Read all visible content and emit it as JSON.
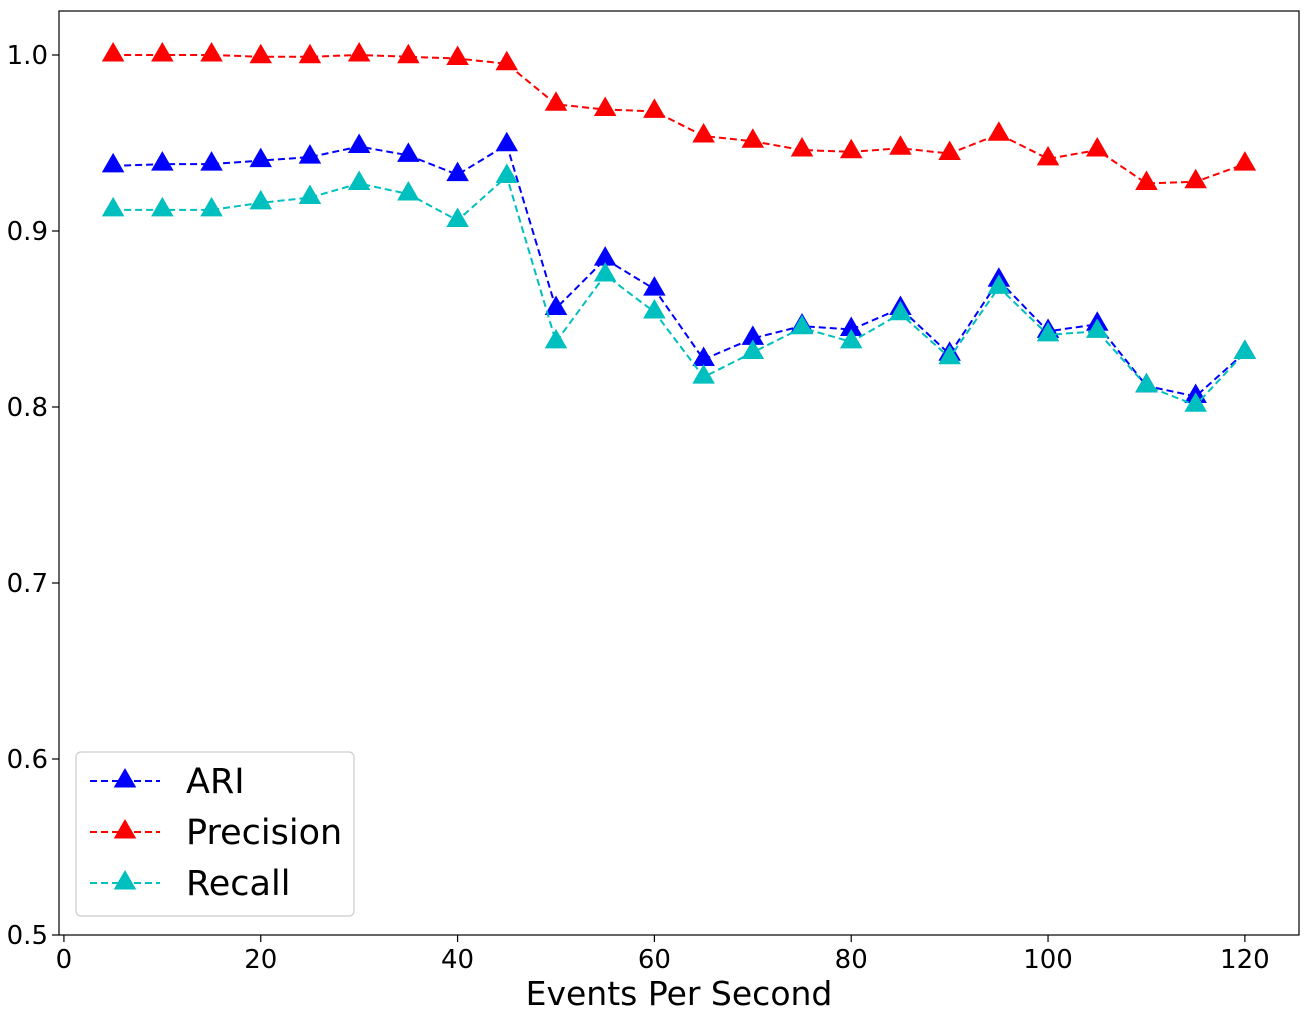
{
  "chart_data": {
    "type": "line",
    "title": "",
    "xlabel": "Events Per Second",
    "ylabel": "",
    "xlim": [
      -0.5,
      125.5
    ],
    "ylim": [
      0.5,
      1.025
    ],
    "xticks": [
      0,
      20,
      40,
      60,
      80,
      100,
      120
    ],
    "yticks": [
      0.5,
      0.6,
      0.7,
      0.8,
      0.9,
      1.0
    ],
    "xtick_labels": [
      "0",
      "20",
      "40",
      "60",
      "80",
      "100",
      "120"
    ],
    "ytick_labels": [
      "0.5",
      "0.6",
      "0.7",
      "0.8",
      "0.9",
      "1.0"
    ],
    "grid": false,
    "legend_position": "lower-left",
    "x": [
      5,
      10,
      15,
      20,
      25,
      30,
      35,
      40,
      45,
      50,
      55,
      60,
      65,
      70,
      75,
      80,
      85,
      90,
      95,
      100,
      105,
      110,
      115,
      120
    ],
    "series": [
      {
        "name": "ARI",
        "color": "#0000ff",
        "marker": "triangle-up",
        "line_style": "dashed",
        "values": [
          0.937,
          0.938,
          0.938,
          0.94,
          0.942,
          0.948,
          0.943,
          0.932,
          0.949,
          0.856,
          0.884,
          0.867,
          0.827,
          0.839,
          0.846,
          0.844,
          0.856,
          0.83,
          0.872,
          0.843,
          0.847,
          0.812,
          0.806,
          0.831
        ]
      },
      {
        "name": "Precision",
        "color": "#ff0000",
        "marker": "triangle-up",
        "line_style": "dashed",
        "values": [
          1.0,
          1.0,
          1.0,
          0.999,
          0.999,
          1.0,
          0.999,
          0.998,
          0.995,
          0.972,
          0.969,
          0.968,
          0.954,
          0.951,
          0.946,
          0.945,
          0.947,
          0.944,
          0.955,
          0.941,
          0.946,
          0.927,
          0.928,
          0.938
        ]
      },
      {
        "name": "Recall",
        "color": "#00bfbf",
        "marker": "triangle-up",
        "line_style": "dashed",
        "values": [
          0.912,
          0.912,
          0.912,
          0.916,
          0.919,
          0.927,
          0.921,
          0.906,
          0.931,
          0.837,
          0.875,
          0.854,
          0.817,
          0.831,
          0.845,
          0.837,
          0.853,
          0.828,
          0.868,
          0.841,
          0.843,
          0.812,
          0.801,
          0.831
        ]
      }
    ]
  }
}
